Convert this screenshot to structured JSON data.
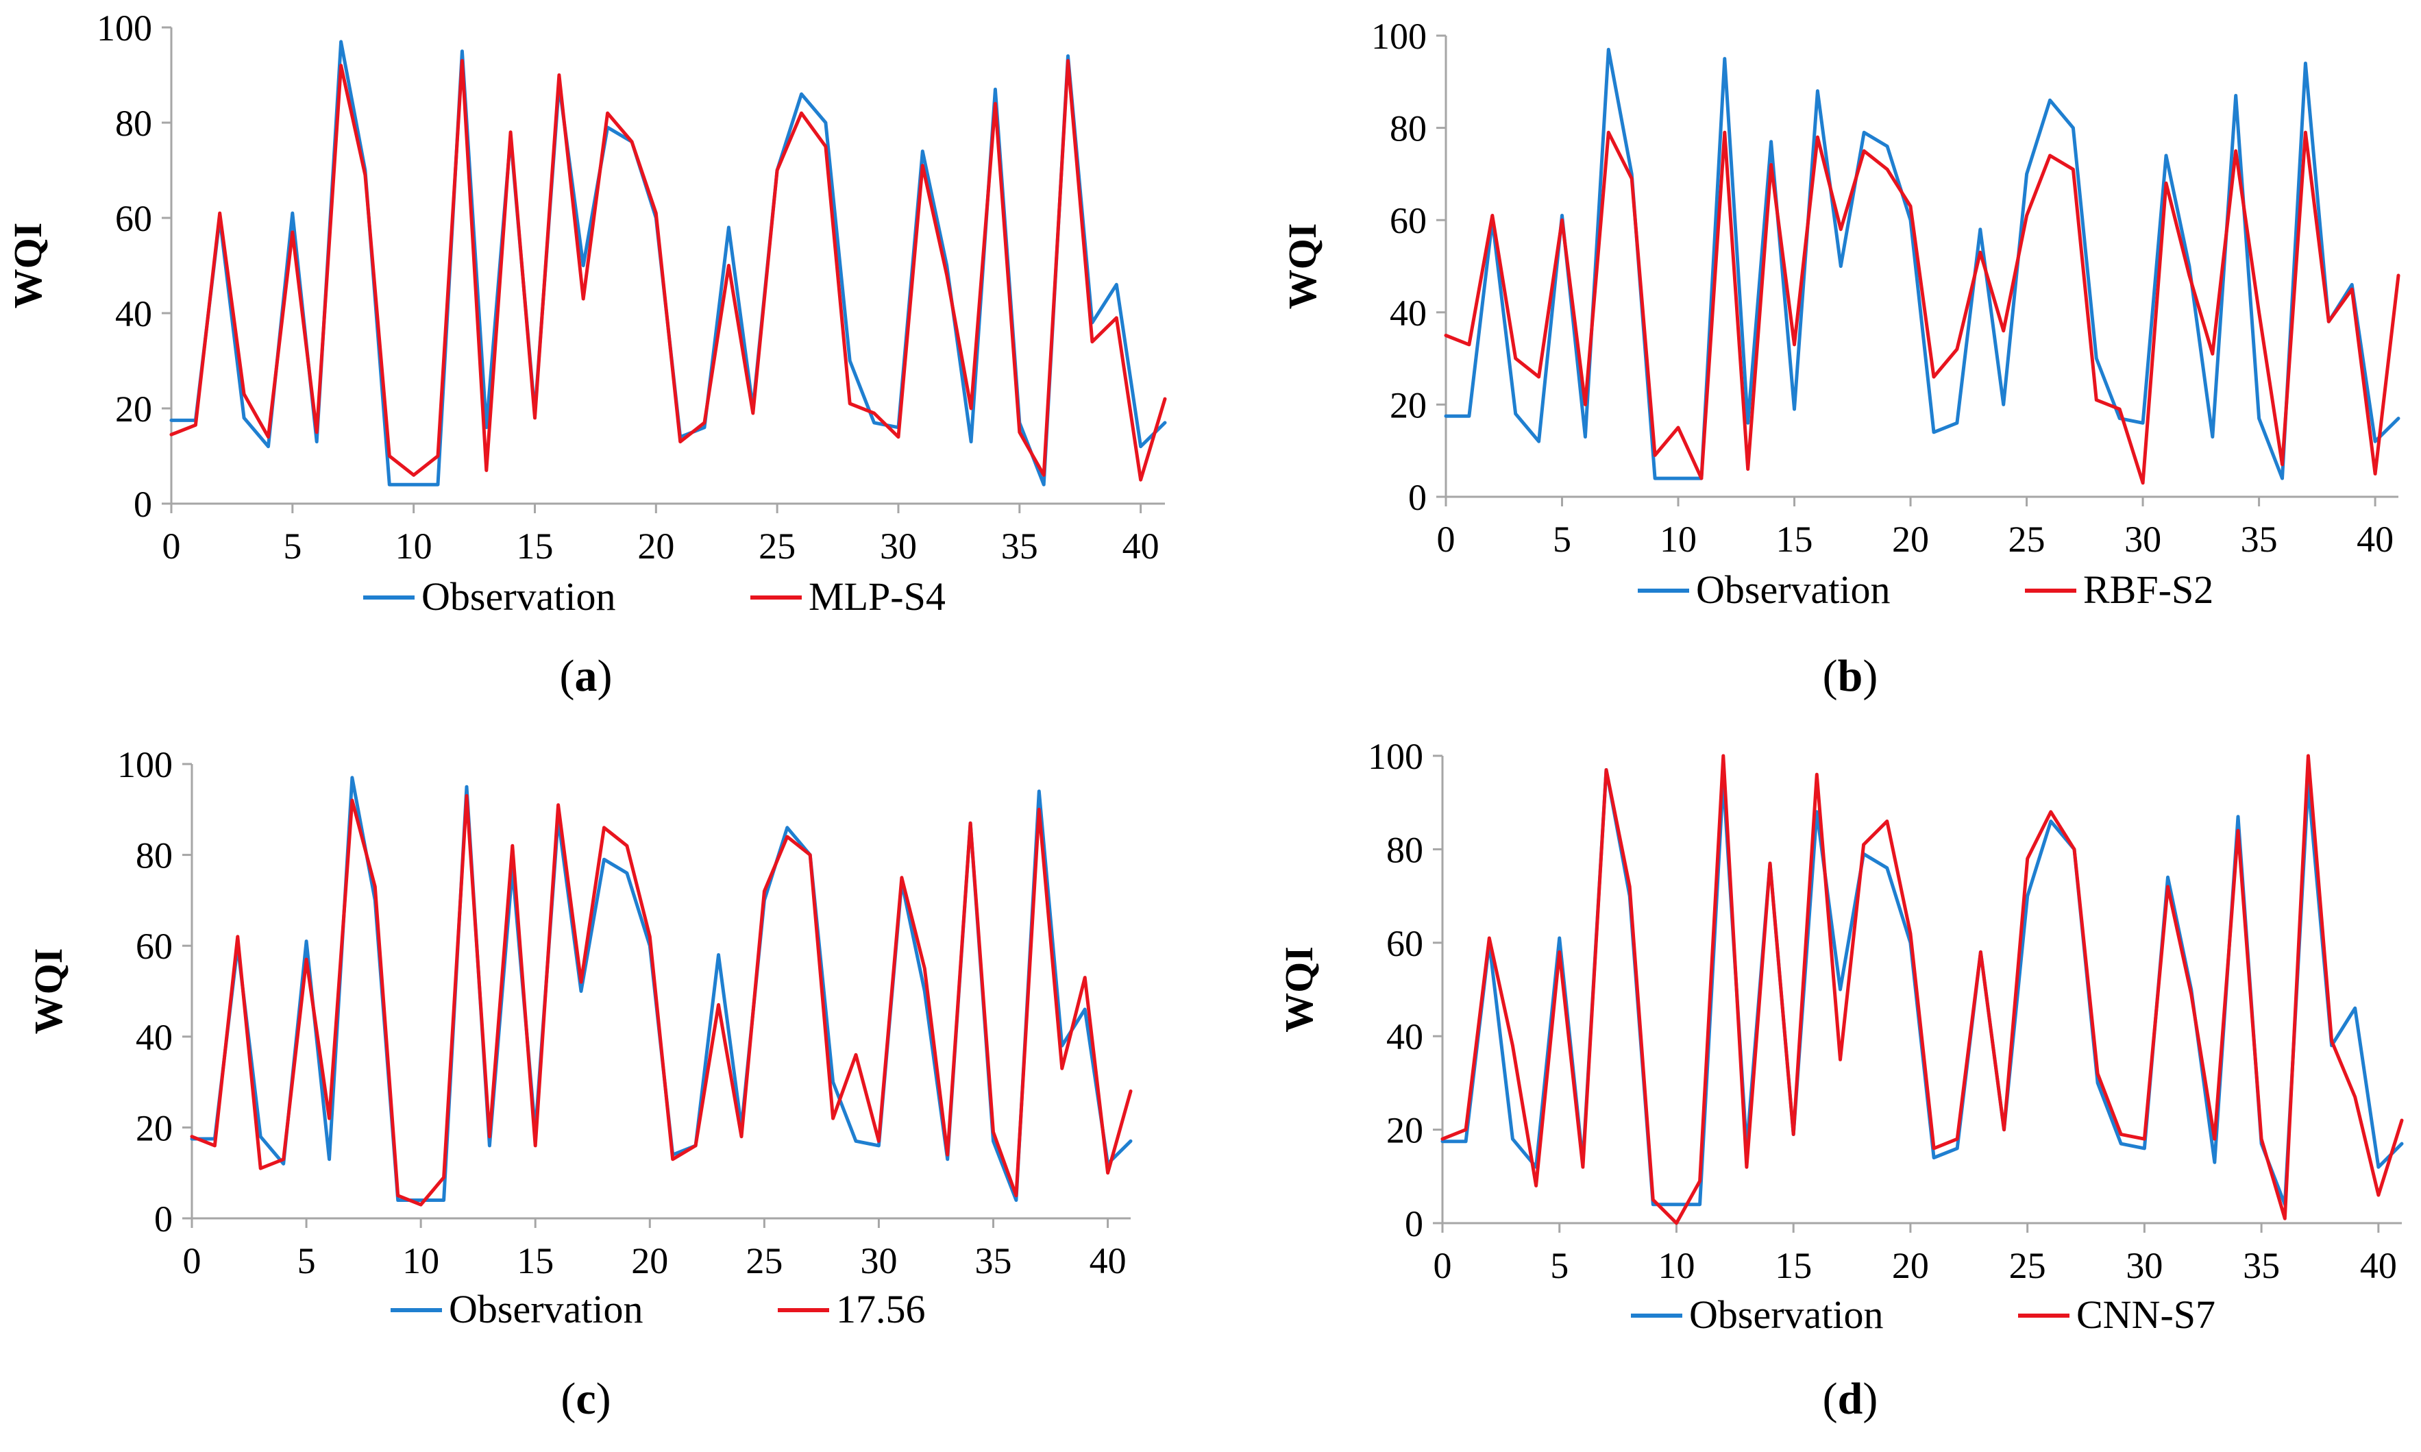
{
  "colors": {
    "observation": "#1f7fd0",
    "model": "#e8141e",
    "axis": "#a6a6a6"
  },
  "chart_data": [
    {
      "type": "line",
      "panel_label": "a",
      "ylabel": "WQI",
      "xlabel": "",
      "ylim": [
        0,
        100
      ],
      "xlim": [
        0,
        41
      ],
      "xticks": [
        0,
        5,
        10,
        15,
        20,
        25,
        30,
        35,
        40
      ],
      "yticks": [
        0,
        20,
        40,
        60,
        80,
        100
      ],
      "x": [
        0,
        1,
        2,
        3,
        4,
        5,
        6,
        7,
        8,
        9,
        10,
        11,
        12,
        13,
        14,
        15,
        16,
        17,
        18,
        19,
        20,
        21,
        22,
        23,
        24,
        25,
        26,
        27,
        28,
        29,
        30,
        31,
        32,
        33,
        34,
        35,
        36,
        37,
        38,
        39,
        40,
        41
      ],
      "series": [
        {
          "name": "Observation",
          "values": [
            17.5,
            17.5,
            60,
            18,
            12,
            61,
            13,
            97,
            70,
            4,
            4,
            4,
            95,
            16,
            77,
            19,
            88,
            50,
            79,
            76,
            60,
            14,
            16,
            58,
            20,
            70,
            86,
            80,
            30,
            17,
            16,
            74,
            50,
            13,
            87,
            17,
            4,
            94,
            38,
            46,
            12,
            17
          ]
        },
        {
          "name": "MLP-S4",
          "values": [
            14.5,
            16.5,
            61,
            23,
            14,
            57,
            15,
            92,
            69,
            10,
            6,
            10,
            93,
            7,
            78,
            18,
            90,
            43,
            82,
            76,
            61,
            13,
            17,
            50,
            19,
            70,
            82,
            75,
            21,
            19,
            14,
            71,
            48,
            20,
            84,
            15,
            6,
            93,
            34,
            39,
            5,
            22
          ]
        }
      ]
    },
    {
      "type": "line",
      "panel_label": "b",
      "ylabel": "WQI",
      "xlabel": "",
      "ylim": [
        0,
        100
      ],
      "xlim": [
        0,
        41
      ],
      "xticks": [
        0,
        5,
        10,
        15,
        20,
        25,
        30,
        35,
        40
      ],
      "yticks": [
        0,
        20,
        40,
        60,
        80,
        100
      ],
      "x": [
        0,
        1,
        2,
        3,
        4,
        5,
        6,
        7,
        8,
        9,
        10,
        11,
        12,
        13,
        14,
        15,
        16,
        17,
        18,
        19,
        20,
        21,
        22,
        23,
        24,
        25,
        26,
        27,
        28,
        29,
        30,
        31,
        32,
        33,
        34,
        35,
        36,
        37,
        38,
        39,
        40,
        41
      ],
      "series": [
        {
          "name": "Observation",
          "values": [
            17.5,
            17.5,
            60,
            18,
            12,
            61,
            13,
            97,
            70,
            4,
            4,
            4,
            95,
            16,
            77,
            19,
            88,
            50,
            79,
            76,
            60,
            14,
            16,
            58,
            20,
            70,
            86,
            80,
            30,
            17,
            16,
            74,
            50,
            13,
            87,
            17,
            4,
            94,
            38,
            46,
            12,
            17
          ]
        },
        {
          "name": "RBF-S2",
          "values": [
            35,
            33,
            61,
            30,
            26,
            60,
            20,
            79,
            69,
            9,
            15,
            4,
            79,
            6,
            72,
            33,
            78,
            58,
            75,
            71,
            63,
            26,
            32,
            53,
            36,
            61,
            74,
            71,
            21,
            19,
            3,
            68,
            48,
            31,
            75,
            40,
            7,
            79,
            38,
            45,
            5,
            48
          ]
        }
      ]
    },
    {
      "type": "line",
      "panel_label": "c",
      "ylabel": "WQI",
      "xlabel": "",
      "ylim": [
        0,
        100
      ],
      "xlim": [
        0,
        41
      ],
      "xticks": [
        0,
        5,
        10,
        15,
        20,
        25,
        30,
        35,
        40
      ],
      "yticks": [
        0,
        20,
        40,
        60,
        80,
        100
      ],
      "x": [
        0,
        1,
        2,
        3,
        4,
        5,
        6,
        7,
        8,
        9,
        10,
        11,
        12,
        13,
        14,
        15,
        16,
        17,
        18,
        19,
        20,
        21,
        22,
        23,
        24,
        25,
        26,
        27,
        28,
        29,
        30,
        31,
        32,
        33,
        34,
        35,
        36,
        37,
        38,
        39,
        40,
        41
      ],
      "series": [
        {
          "name": "Observation",
          "values": [
            17.5,
            17.5,
            60,
            18,
            12,
            61,
            13,
            97,
            70,
            4,
            4,
            4,
            95,
            16,
            77,
            19,
            88,
            50,
            79,
            76,
            60,
            14,
            16,
            58,
            20,
            70,
            86,
            80,
            30,
            17,
            16,
            74,
            50,
            13,
            87,
            17,
            4,
            94,
            38,
            46,
            12,
            17
          ]
        },
        {
          "name": "17.56",
          "values": [
            18,
            16,
            62,
            11,
            13,
            57,
            22,
            92,
            73,
            5,
            3,
            9,
            93,
            18,
            82,
            16,
            91,
            52,
            86,
            82,
            62,
            13,
            16,
            47,
            18,
            72,
            84,
            80,
            22,
            36,
            17,
            75,
            55,
            14,
            87,
            19,
            5,
            90,
            33,
            53,
            10,
            28
          ]
        }
      ]
    },
    {
      "type": "line",
      "panel_label": "d",
      "ylabel": "WQI",
      "xlabel": "",
      "ylim": [
        0,
        100
      ],
      "xlim": [
        0,
        41
      ],
      "xticks": [
        0,
        5,
        10,
        15,
        20,
        25,
        30,
        35,
        40
      ],
      "yticks": [
        0,
        20,
        40,
        60,
        80,
        100
      ],
      "x": [
        0,
        1,
        2,
        3,
        4,
        5,
        6,
        7,
        8,
        9,
        10,
        11,
        12,
        13,
        14,
        15,
        16,
        17,
        18,
        19,
        20,
        21,
        22,
        23,
        24,
        25,
        26,
        27,
        28,
        29,
        30,
        31,
        32,
        33,
        34,
        35,
        36,
        37,
        38,
        39,
        40,
        41
      ],
      "series": [
        {
          "name": "Observation",
          "values": [
            17.5,
            17.5,
            60,
            18,
            12,
            61,
            13,
            97,
            70,
            4,
            4,
            4,
            95,
            16,
            77,
            19,
            88,
            50,
            79,
            76,
            60,
            14,
            16,
            58,
            20,
            70,
            86,
            80,
            30,
            17,
            16,
            74,
            50,
            13,
            87,
            17,
            4,
            94,
            38,
            46,
            12,
            17
          ]
        },
        {
          "name": "CNN-S7",
          "values": [
            18,
            20,
            61,
            38,
            8,
            58,
            12,
            97,
            72,
            5,
            0,
            9,
            100,
            12,
            77,
            19,
            96,
            35,
            81,
            86,
            62,
            16,
            18,
            58,
            20,
            78,
            88,
            80,
            32,
            19,
            18,
            72,
            49,
            18,
            84,
            18,
            1,
            100,
            39,
            27,
            6,
            22
          ]
        }
      ]
    }
  ]
}
